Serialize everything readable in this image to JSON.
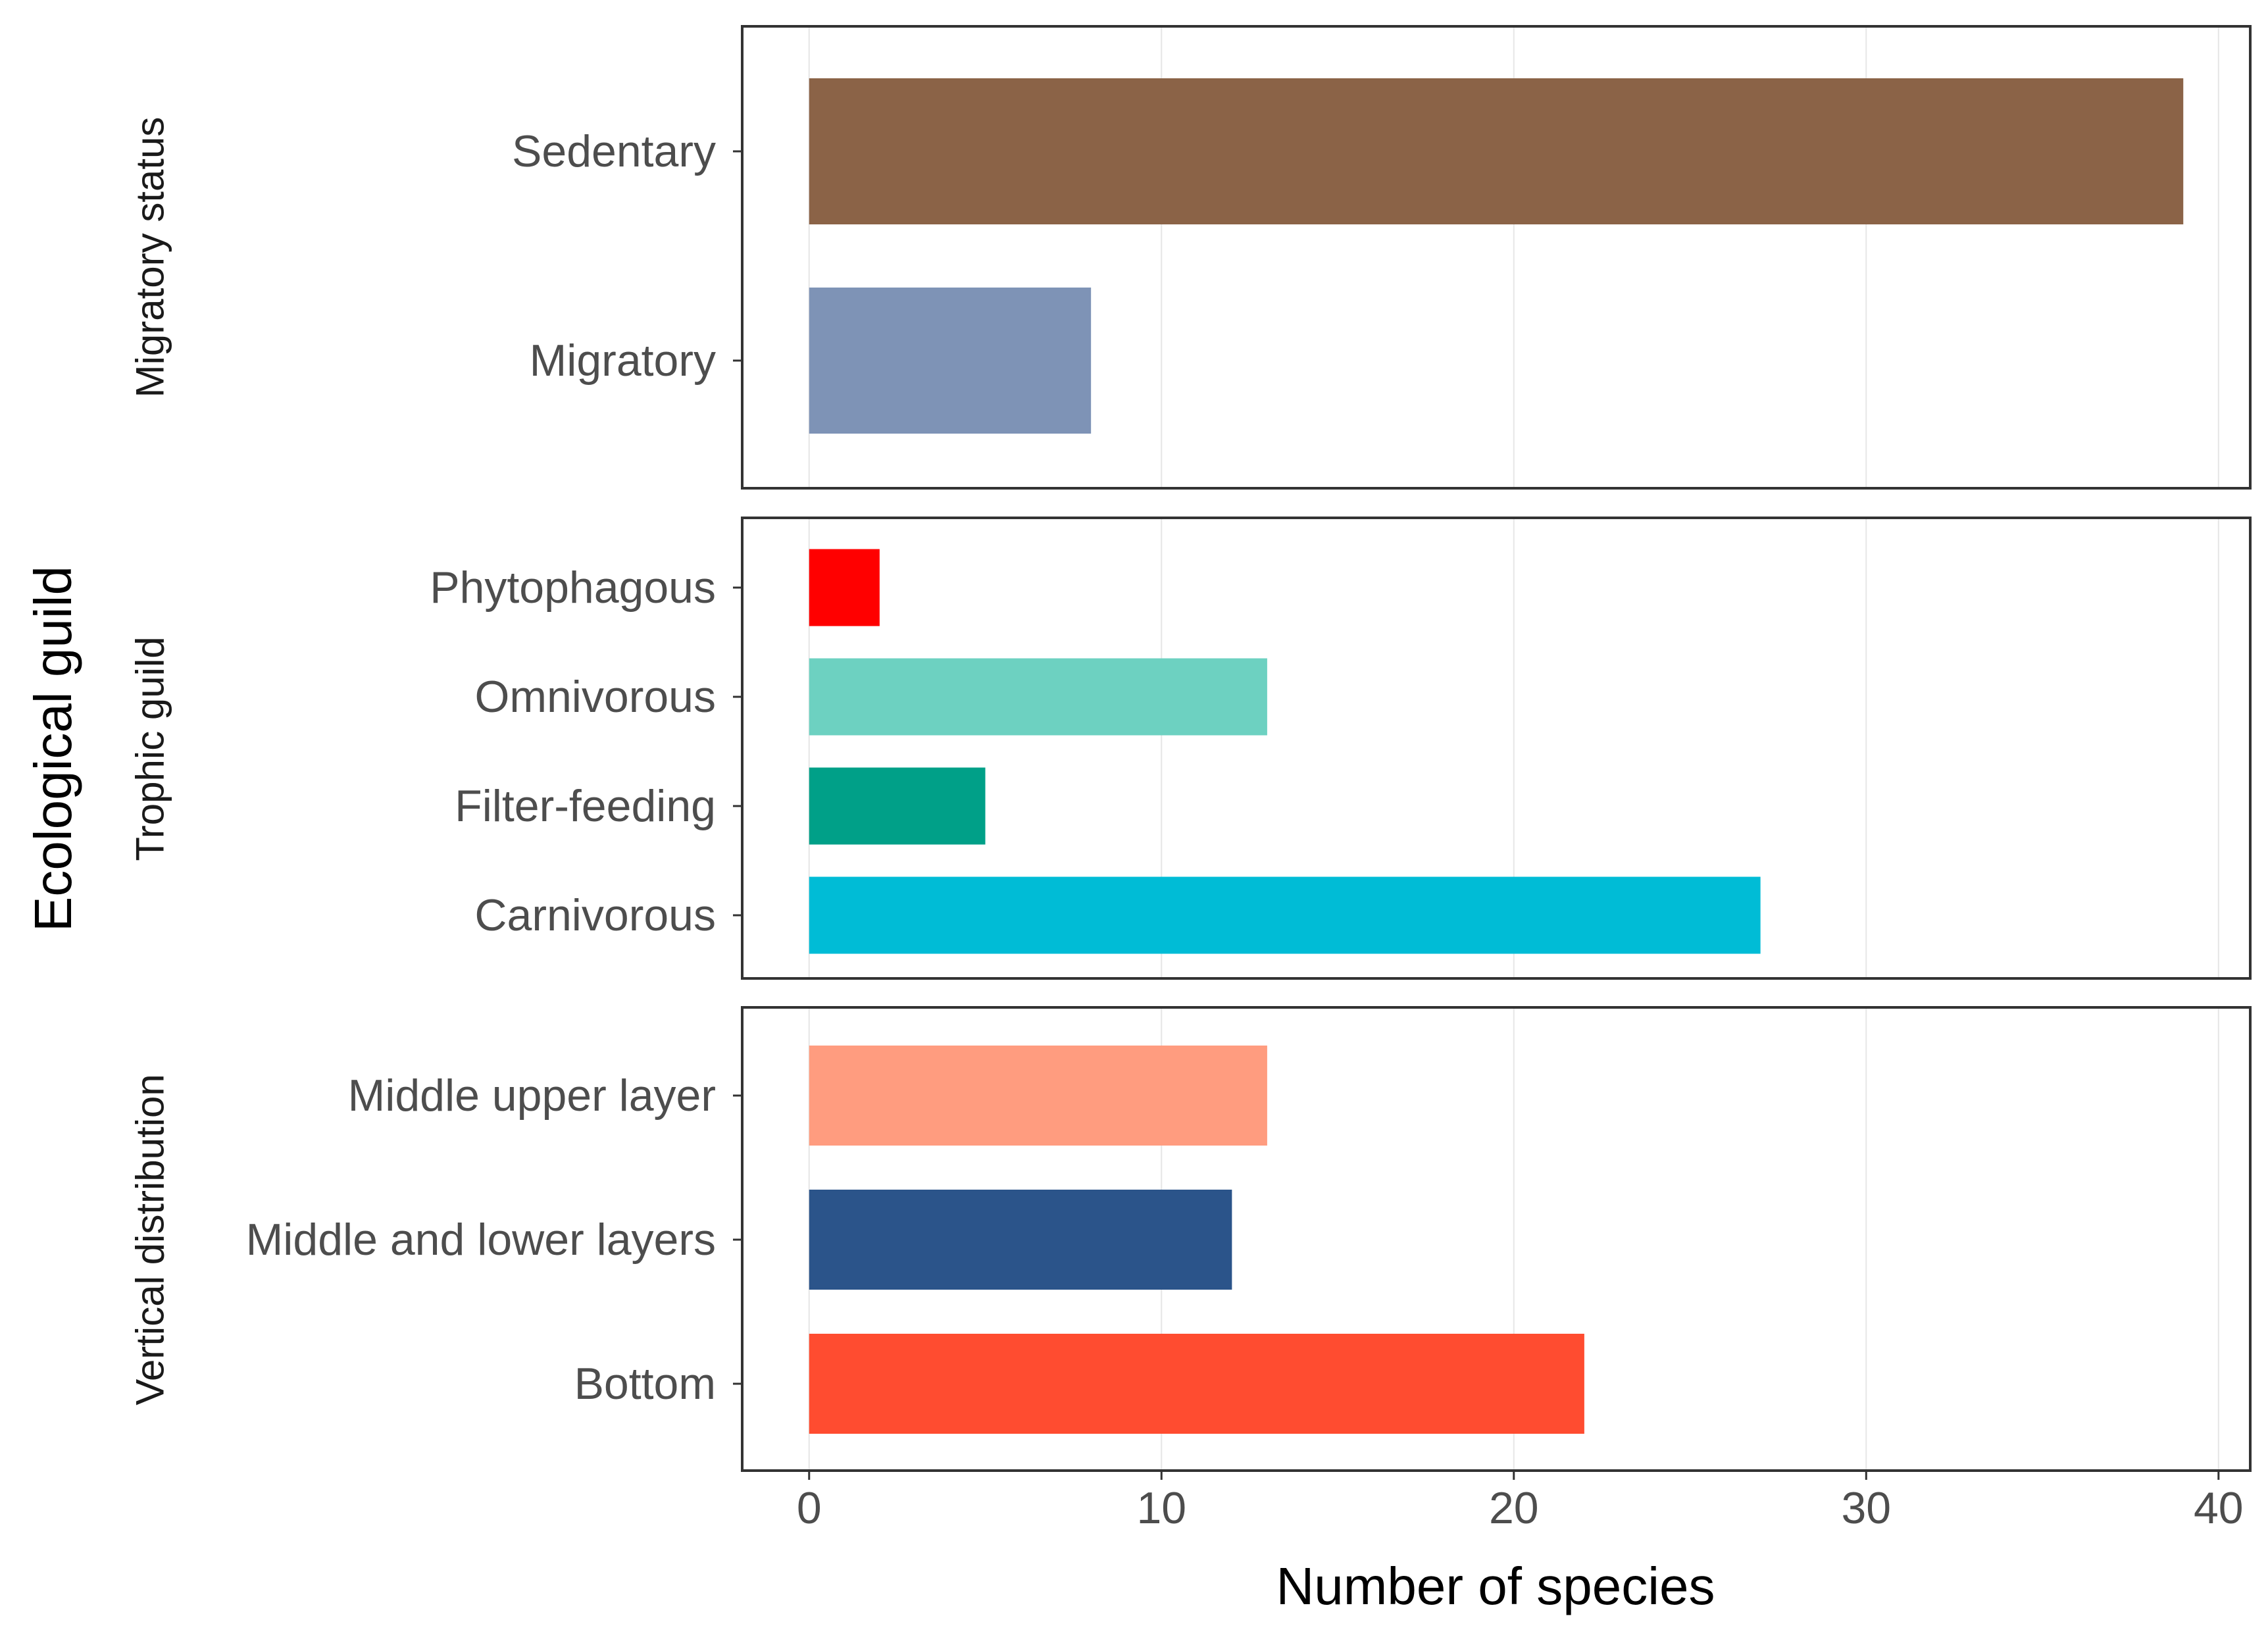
{
  "chart_data": {
    "type": "bar",
    "orientation": "horizontal",
    "xlabel": "Number of species",
    "ylabel": "Ecological guild",
    "xlim": [
      -1.9,
      40.9
    ],
    "xticks": [
      0,
      10,
      20,
      30,
      40
    ],
    "grid": true,
    "panels": [
      {
        "name": "Migratory status",
        "categories": [
          "Sedentary",
          "Migratory"
        ],
        "values": [
          39,
          8
        ],
        "colors": [
          "#8B6347",
          "#7E93B6"
        ]
      },
      {
        "name": "Trophic guild",
        "categories": [
          "Phytophagous",
          "Omnivorous",
          "Filter-feeding",
          "Carnivorous"
        ],
        "values": [
          2,
          13,
          5,
          27
        ],
        "colors": [
          "#FF0000",
          "#6DD1C1",
          "#00A088",
          "#00BCD6"
        ]
      },
      {
        "name": "Vertical distribution",
        "categories": [
          "Middle upper layer",
          "Middle and lower layers",
          "Bottom"
        ],
        "values": [
          13,
          12,
          22
        ],
        "colors": [
          "#FF9C7F",
          "#2B548A",
          "#FF4C30"
        ]
      }
    ]
  }
}
